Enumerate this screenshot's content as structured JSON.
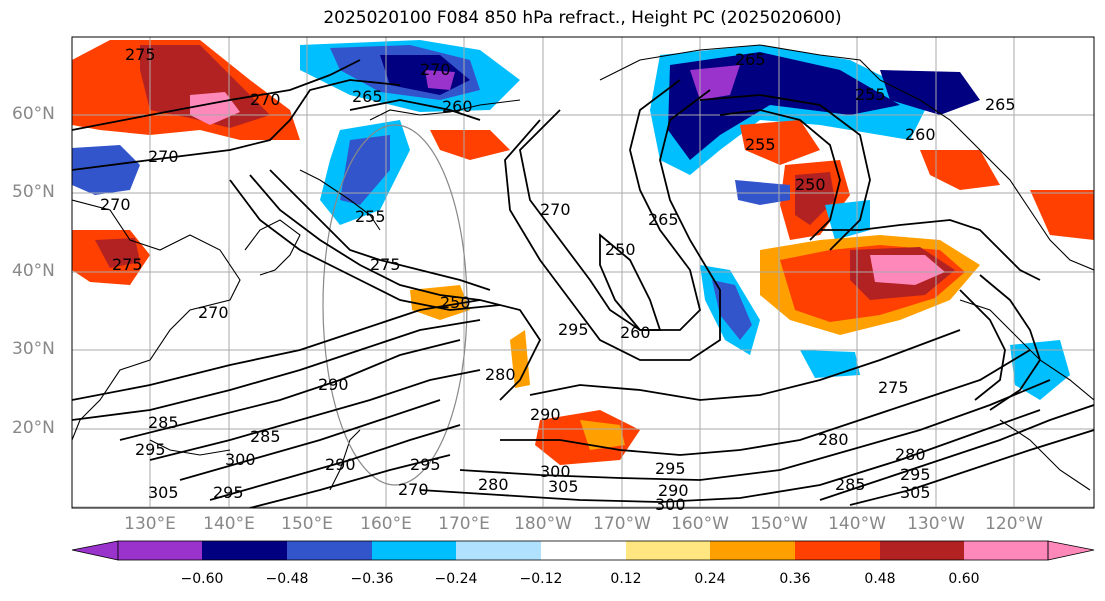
{
  "title": "2025020100 F084 850 hPa refract., Height PC (2025020600)",
  "map": {
    "lat_labels": [
      "60°N",
      "50°N",
      "40°N",
      "30°N",
      "20°N"
    ],
    "lon_labels": [
      "130°E",
      "140°E",
      "150°E",
      "160°E",
      "170°E",
      "180°W",
      "170°W",
      "160°W",
      "150°W",
      "140°W",
      "130°W",
      "120°W"
    ]
  },
  "contour_labels": [
    "275",
    "270",
    "265",
    "260",
    "270",
    "270",
    "270",
    "275",
    "265",
    "255",
    "260",
    "265",
    "250",
    "255",
    "255",
    "250",
    "265",
    "270",
    "250",
    "260",
    "275",
    "270",
    "295",
    "280",
    "285",
    "290",
    "295",
    "300",
    "305",
    "285",
    "290",
    "295",
    "270",
    "280",
    "290",
    "295",
    "300",
    "305",
    "290",
    "300",
    "295",
    "305",
    "275",
    "280",
    "285",
    "280",
    "295"
  ],
  "colorbar": {
    "colors": [
      "#9933cc",
      "#000080",
      "#3355cc",
      "#00bfff",
      "#b0e2ff",
      "#ffffff",
      "#ffe680",
      "#ffa000",
      "#ff4000",
      "#b22222",
      "#ff88bb"
    ],
    "tick_labels": [
      "−0.60",
      "−0.48",
      "−0.36",
      "−0.24",
      "−0.12",
      "0.12",
      "0.24",
      "0.36",
      "0.48",
      "0.60"
    ]
  }
}
